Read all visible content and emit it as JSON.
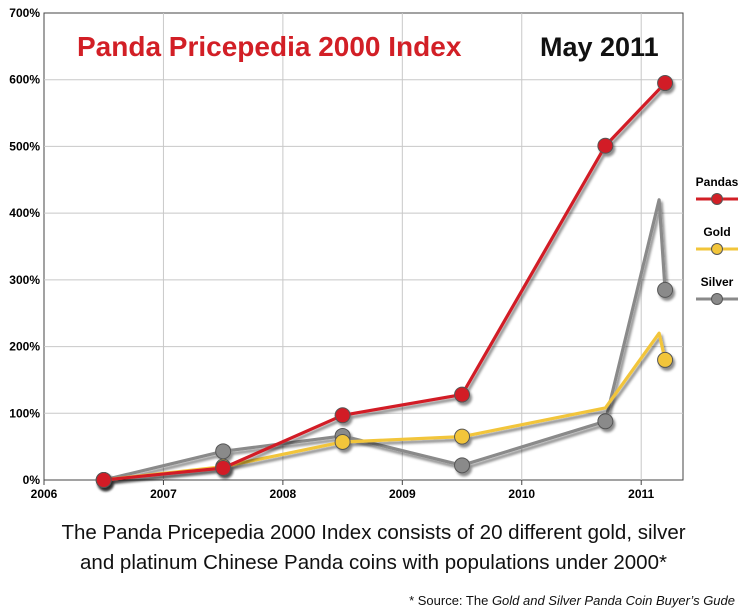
{
  "chart_data": {
    "type": "line",
    "title": "Panda Pricepedia 2000 Index",
    "subtitle": "May 2011",
    "y_ticks": [
      "0%",
      "100%",
      "200%",
      "300%",
      "400%",
      "500%",
      "600%",
      "700%"
    ],
    "x_ticks": [
      "2006",
      "2007",
      "2008",
      "2009",
      "2010",
      "2011"
    ],
    "xlim": [
      2006,
      2011.35
    ],
    "ylim": [
      0,
      700
    ],
    "grid": true,
    "legend_position": "right",
    "series": [
      {
        "name": "Pandas",
        "color": "#d21f26",
        "x": [
          2006.5,
          2007.5,
          2008.5,
          2009.5,
          2010.7,
          2011.2
        ],
        "y": [
          0,
          18,
          97,
          128,
          501,
          595
        ],
        "markers": [
          true,
          true,
          true,
          true,
          true,
          true
        ]
      },
      {
        "name": "Gold",
        "color": "#f2c53a",
        "x": [
          2006.5,
          2007.5,
          2008.5,
          2009.5,
          2010.7,
          2011.15,
          2011.2
        ],
        "y": [
          0,
          20,
          57,
          65,
          108,
          220,
          180
        ],
        "markers": [
          true,
          true,
          true,
          true,
          false,
          false,
          true
        ]
      },
      {
        "name": "Silver",
        "color": "#8a8a8a",
        "x": [
          2006.5,
          2007.5,
          2008.5,
          2009.5,
          2010.7,
          2011.15,
          2011.2
        ],
        "y": [
          0,
          43,
          66,
          22,
          88,
          420,
          285
        ],
        "markers": [
          true,
          true,
          true,
          true,
          true,
          false,
          true
        ]
      }
    ]
  },
  "caption": {
    "line1": "The Panda Pricepedia 2000 Index consists of 20 different gold, silver",
    "line2": "and platinum Chinese Panda coins with populations under 2000*",
    "source_prefix": "* Source: The ",
    "source_title": "Gold and Silver Panda Coin Buyer’s Gude"
  }
}
